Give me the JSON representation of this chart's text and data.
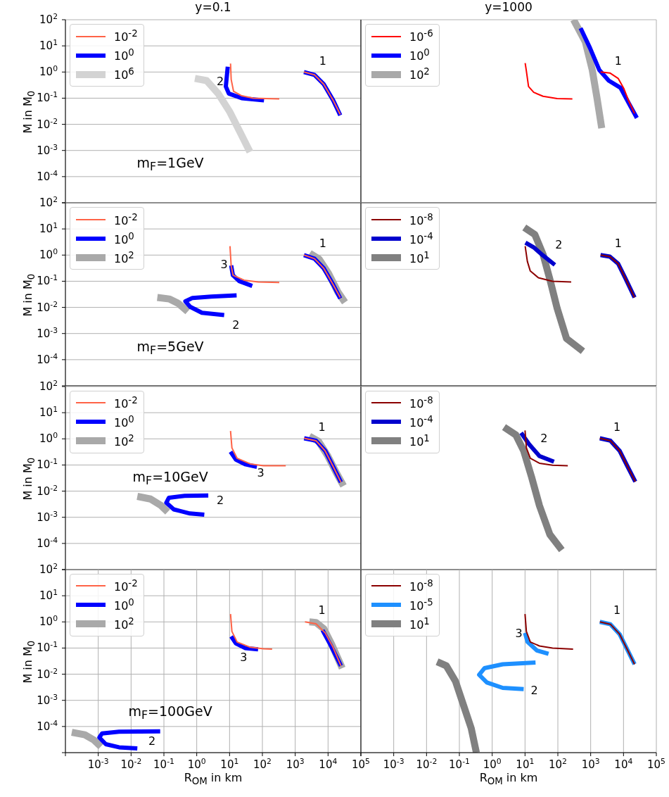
{
  "chart_data": [
    {
      "type": "line",
      "title": "y=0.1",
      "ylabel": "M in M$_{0}$",
      "log": "xy",
      "grid": true,
      "legend": "top left",
      "tick_labels": "y",
      "xlim": [
        0.0001,
        100000
      ],
      "ylim": [
        1e-05,
        100
      ],
      "xticks": [
        {
          "value": 0.0001,
          "label": null
        },
        {
          "value": 0.001,
          "label": null
        },
        {
          "value": 0.01,
          "label": null
        },
        {
          "value": 0.1,
          "label": null
        },
        {
          "value": 1,
          "label": null
        },
        {
          "value": 10,
          "label": null
        },
        {
          "value": 100,
          "label": null
        },
        {
          "value": 1000,
          "label": null
        },
        {
          "value": 10000,
          "label": null
        },
        {
          "value": 100000,
          "label": null
        }
      ],
      "yticks": [
        {
          "value": 1e-05,
          "label": null
        },
        {
          "value": 0.0001,
          "label": "10$^{-4}$"
        },
        {
          "value": 0.001,
          "label": "10$^{-3}$"
        },
        {
          "value": 0.01,
          "label": "10$^{-2}$"
        },
        {
          "value": 0.1,
          "label": "10$^{-1}$"
        },
        {
          "value": 1,
          "label": "10$^{0}$"
        },
        {
          "value": 10,
          "label": "10$^{1}$"
        },
        {
          "value": 100,
          "label": "10$^{2}$"
        }
      ],
      "series": [
        {
          "name": "10$^{-2}$",
          "color": "#ff6347",
          "x": [
            10.7,
            11.2,
            13.2,
            23.5,
            53,
            327,
            null,
            1840,
            3850,
            7430,
            14400,
            23500
          ],
          "values": [
            2.1,
            0.52,
            0.185,
            0.123,
            0.1,
            0.094,
            null,
            1,
            0.78,
            0.34,
            0.082,
            0.024
          ]
        },
        {
          "name": "10$^{0}$",
          "color": "#0000ff",
          "x": [
            8.8,
            7.7,
            9.5,
            23.5,
            112,
            null,
            1840,
            3850,
            7430,
            14400,
            23500
          ],
          "values": [
            1.6,
            0.28,
            0.15,
            0.1,
            0.082,
            null,
            1,
            0.78,
            0.34,
            0.082,
            0.022
          ]
        },
        {
          "name": "10$^{6}$",
          "color": "#d3d3d3",
          "x": [
            0.88,
            2,
            4.5,
            10.3,
            20,
            41.8
          ],
          "values": [
            0.57,
            0.47,
            0.15,
            0.029,
            0.0056,
            0.00088
          ]
        }
      ],
      "annotations": [
        "2",
        "1",
        "m$_{F}$=1GeV"
      ]
    },
    {
      "type": "line",
      "title": "y=1000",
      "log": "xy",
      "grid": true,
      "legend": "top left",
      "tick_labels": false,
      "xlim": [
        0.0001,
        100000
      ],
      "ylim": [
        1e-05,
        100
      ],
      "xticks": [
        {
          "value": 0.0001,
          "label": null
        },
        {
          "value": 0.001,
          "label": null
        },
        {
          "value": 0.01,
          "label": null
        },
        {
          "value": 0.1,
          "label": null
        },
        {
          "value": 1,
          "label": null
        },
        {
          "value": 10,
          "label": null
        },
        {
          "value": 100,
          "label": null
        },
        {
          "value": 1000,
          "label": null
        },
        {
          "value": 10000,
          "label": null
        },
        {
          "value": 100000,
          "label": null
        }
      ],
      "yticks": [
        {
          "value": 1e-05,
          "label": null
        },
        {
          "value": 0.0001,
          "label": null
        },
        {
          "value": 0.001,
          "label": null
        },
        {
          "value": 0.01,
          "label": null
        },
        {
          "value": 0.1,
          "label": null
        },
        {
          "value": 1,
          "label": null
        },
        {
          "value": 10,
          "label": null
        },
        {
          "value": 100,
          "label": null
        }
      ],
      "series": [
        {
          "name": "10$^{-6}$",
          "color": "#ff0000",
          "x": [
            10.1,
            10.9,
            12.8,
            18.4,
            35.5,
            95,
            277,
            null,
            2000,
            3850,
            6860,
            10300,
            14300,
            21700
          ],
          "values": [
            2.2,
            1.18,
            0.28,
            0.167,
            0.118,
            0.096,
            0.094,
            null,
            1,
            0.92,
            0.57,
            0.23,
            0.08,
            0.026
          ]
        },
        {
          "name": "10$^{0}$",
          "color": "#0000ff",
          "x": [
            493,
            952,
            1840,
            3550,
            8070,
            14300,
            25500
          ],
          "values": [
            47.6,
            8.3,
            1.18,
            0.47,
            0.25,
            0.066,
            0.0175
          ]
        },
        {
          "name": "10$^{2}$",
          "color": "#a9a9a9",
          "x": [
            301,
            686,
            1120,
            1560,
            2170
          ],
          "values": [
            100,
            14.3,
            1.18,
            0.1,
            0.0071
          ]
        }
      ],
      "annotations": [
        "1"
      ]
    },
    {
      "type": "line",
      "ylabel": "M in M$_{0}$",
      "log": "xy",
      "grid": true,
      "legend": "top left",
      "tick_labels": "y",
      "xlim": [
        0.0001,
        100000
      ],
      "ylim": [
        1e-05,
        100
      ],
      "xticks": [
        {
          "value": 0.0001,
          "label": null
        },
        {
          "value": 0.001,
          "label": null
        },
        {
          "value": 0.01,
          "label": null
        },
        {
          "value": 0.1,
          "label": null
        },
        {
          "value": 1,
          "label": null
        },
        {
          "value": 10,
          "label": null
        },
        {
          "value": 100,
          "label": null
        },
        {
          "value": 1000,
          "label": null
        },
        {
          "value": 10000,
          "label": null
        },
        {
          "value": 100000,
          "label": null
        }
      ],
      "yticks": [
        {
          "value": 1e-05,
          "label": null
        },
        {
          "value": 0.0001,
          "label": "10$^{-4}$"
        },
        {
          "value": 0.001,
          "label": "10$^{-3}$"
        },
        {
          "value": 0.01,
          "label": "10$^{-2}$"
        },
        {
          "value": 0.1,
          "label": "10$^{-1}$"
        },
        {
          "value": 1,
          "label": "10$^{0}$"
        },
        {
          "value": 10,
          "label": "10$^{1}$"
        },
        {
          "value": 100,
          "label": "10$^{2}$"
        }
      ],
      "series": [
        {
          "name": "10$^{-2}$",
          "color": "#ff6347",
          "x": [
            10.3,
            11.2,
            12.8,
            27.7,
            74,
            327,
            null,
            1840,
            3850,
            7430,
            14400,
            23500
          ],
          "values": [
            2.2,
            0.38,
            0.17,
            0.11,
            0.094,
            0.09,
            null,
            1,
            0.73,
            0.31,
            0.073,
            0.024
          ]
        },
        {
          "name": "10$^{0}$",
          "color": "#0000ff",
          "x": [
            11.2,
            12.6,
            20,
            49,
            null,
            16.4,
            2.77,
            0.74,
            0.45,
            0.63,
            1.44,
            6.85,
            null,
            1840,
            3850,
            7430,
            14400,
            23500
          ],
          "values": [
            0.4,
            0.17,
            0.1,
            0.066,
            null,
            0.029,
            0.026,
            0.023,
            0.017,
            0.0105,
            0.0062,
            0.0051,
            null,
            1,
            0.73,
            0.31,
            0.073,
            0.022
          ]
        },
        {
          "name": "10$^{2}$",
          "color": "#a9a9a9",
          "x": [
            0.063,
            0.145,
            0.28,
            0.53,
            null,
            2770,
            5350,
            10300,
            19900,
            32700
          ],
          "values": [
            0.024,
            0.021,
            0.014,
            0.0069,
            null,
            1.18,
            0.7,
            0.2,
            0.039,
            0.0156
          ]
        }
      ],
      "annotations": [
        "1",
        "3",
        "2",
        "m$_{F}$=5GeV"
      ]
    },
    {
      "type": "line",
      "log": "xy",
      "grid": true,
      "legend": "top left",
      "tick_labels": false,
      "xlim": [
        0.0001,
        100000
      ],
      "ylim": [
        1e-05,
        100
      ],
      "xticks": [
        {
          "value": 0.0001,
          "label": null
        },
        {
          "value": 0.001,
          "label": null
        },
        {
          "value": 0.01,
          "label": null
        },
        {
          "value": 0.1,
          "label": null
        },
        {
          "value": 1,
          "label": null
        },
        {
          "value": 10,
          "label": null
        },
        {
          "value": 100,
          "label": null
        },
        {
          "value": 1000,
          "label": null
        },
        {
          "value": 10000,
          "label": null
        },
        {
          "value": 100000,
          "label": null
        }
      ],
      "yticks": [
        {
          "value": 1e-05,
          "label": null
        },
        {
          "value": 0.0001,
          "label": null
        },
        {
          "value": 0.001,
          "label": null
        },
        {
          "value": 0.01,
          "label": null
        },
        {
          "value": 0.1,
          "label": null
        },
        {
          "value": 1,
          "label": null
        },
        {
          "value": 10,
          "label": null
        },
        {
          "value": 100,
          "label": null
        }
      ],
      "series": [
        {
          "name": "10$^{-8}$",
          "color": "#8b0000",
          "x": [
            10.1,
            11.8,
            14.4,
            25.5,
            68,
            255,
            null,
            2000,
            3850,
            6860,
            11200,
            21700
          ],
          "values": [
            2.2,
            0.57,
            0.25,
            0.136,
            0.1,
            0.094,
            null,
            1,
            0.87,
            0.47,
            0.136,
            0.024
          ]
        },
        {
          "name": "10$^{-4}$",
          "color": "#0000cd",
          "x": [
            10.3,
            18.4,
            35.5,
            81,
            null,
            2000,
            3850,
            6860,
            11200,
            21700
          ],
          "values": [
            3.0,
            1.97,
            0.96,
            0.42,
            null,
            1,
            0.87,
            0.47,
            0.136,
            0.024
          ]
        },
        {
          "name": "10$^{1}$",
          "color": "#808080",
          "x": [
            9.5,
            19.9,
            35.5,
            58,
            95,
            184,
            581
          ],
          "values": [
            11.4,
            6.1,
            1.06,
            0.11,
            0.0093,
            0.00064,
            0.00021
          ]
        }
      ],
      "annotations": [
        "2",
        "1"
      ]
    },
    {
      "type": "line",
      "ylabel": "M in M$_{0}$",
      "log": "xy",
      "grid": true,
      "legend": "top left",
      "tick_labels": "y",
      "xlim": [
        0.0001,
        100000
      ],
      "ylim": [
        1e-05,
        100
      ],
      "xticks": [
        {
          "value": 0.0001,
          "label": null
        },
        {
          "value": 0.001,
          "label": null
        },
        {
          "value": 0.01,
          "label": null
        },
        {
          "value": 0.1,
          "label": null
        },
        {
          "value": 1,
          "label": null
        },
        {
          "value": 10,
          "label": null
        },
        {
          "value": 100,
          "label": null
        },
        {
          "value": 1000,
          "label": null
        },
        {
          "value": 10000,
          "label": null
        },
        {
          "value": 100000,
          "label": null
        }
      ],
      "yticks": [
        {
          "value": 1e-05,
          "label": null
        },
        {
          "value": 0.0001,
          "label": "10$^{-4}$"
        },
        {
          "value": 0.001,
          "label": "10$^{-3}$"
        },
        {
          "value": 0.01,
          "label": "10$^{-2}$"
        },
        {
          "value": 0.1,
          "label": "10$^{-1}$"
        },
        {
          "value": 1,
          "label": "10$^{0}$"
        },
        {
          "value": 10,
          "label": "10$^{1}$"
        },
        {
          "value": 100,
          "label": "10$^{2}$"
        }
      ],
      "series": [
        {
          "name": "10$^{-2}$",
          "color": "#ff6347",
          "x": [
            10.7,
            11.8,
            17,
            43,
            108,
            515,
            null,
            1870,
            4290,
            8170,
            14200,
            24700
          ],
          "values": [
            2.0,
            0.45,
            0.18,
            0.11,
            0.094,
            0.094,
            null,
            1.05,
            0.85,
            0.35,
            0.089,
            0.022
          ]
        },
        {
          "name": "10$^{0}$",
          "color": "#0000ff",
          "x": [
            10.7,
            15.6,
            29.6,
            68,
            null,
            2.25,
            0.43,
            0.142,
            0.118,
            0.2,
            0.62,
            1.7,
            null,
            1870,
            4290,
            8170,
            14200,
            24700
          ],
          "values": [
            0.32,
            0.16,
            0.107,
            0.085,
            null,
            0.0068,
            0.0066,
            0.0056,
            0.0036,
            0.002,
            0.0014,
            0.00126,
            null,
            1.05,
            0.85,
            0.35,
            0.089,
            0.022
          ]
        },
        {
          "name": "10$^{2}$",
          "color": "#a9a9a9",
          "x": [
            0.0155,
            0.039,
            0.082,
            0.13,
            null,
            2700,
            5150,
            9820,
            17100,
            29600
          ],
          "values": [
            0.0063,
            0.005,
            0.0028,
            0.0016,
            null,
            1.26,
            0.8,
            0.22,
            0.056,
            0.0158
          ]
        }
      ],
      "annotations": [
        "1",
        "3",
        "2",
        "m$_{F}$=10GeV"
      ]
    },
    {
      "type": "line",
      "log": "xy",
      "grid": true,
      "legend": "top left",
      "tick_labels": false,
      "xlim": [
        0.0001,
        100000
      ],
      "ylim": [
        1e-05,
        100
      ],
      "xticks": [
        {
          "value": 0.0001,
          "label": null
        },
        {
          "value": 0.001,
          "label": null
        },
        {
          "value": 0.01,
          "label": null
        },
        {
          "value": 0.1,
          "label": null
        },
        {
          "value": 1,
          "label": null
        },
        {
          "value": 10,
          "label": null
        },
        {
          "value": 100,
          "label": null
        },
        {
          "value": 1000,
          "label": null
        },
        {
          "value": 10000,
          "label": null
        },
        {
          "value": 100000,
          "label": null
        }
      ],
      "yticks": [
        {
          "value": 1e-05,
          "label": null
        },
        {
          "value": 0.0001,
          "label": null
        },
        {
          "value": 0.001,
          "label": null
        },
        {
          "value": 0.01,
          "label": null
        },
        {
          "value": 0.1,
          "label": null
        },
        {
          "value": 1,
          "label": null
        },
        {
          "value": 10,
          "label": null
        },
        {
          "value": 100,
          "label": null
        }
      ],
      "series": [
        {
          "name": "10$^{-8}$",
          "color": "#8b0000",
          "x": [
            10,
            11,
            14.5,
            27.5,
            69,
            201,
            null,
            1900,
            3990,
            7590,
            13200,
            22900
          ],
          "values": [
            2.1,
            0.45,
            0.18,
            0.117,
            0.098,
            0.094,
            null,
            1.05,
            0.85,
            0.35,
            0.089,
            0.023
          ]
        },
        {
          "name": "10$^{-4}$",
          "color": "#0000cd",
          "x": [
            7.6,
            13.2,
            27.5,
            76,
            null,
            1900,
            3990,
            7590,
            13200,
            22900
          ],
          "values": [
            1.7,
            0.63,
            0.22,
            0.134,
            null,
            1.05,
            0.85,
            0.35,
            0.089,
            0.023
          ]
        },
        {
          "name": "10$^{1}$",
          "color": "#808080",
          "x": [
            2.29,
            5.25,
            9.1,
            15.8,
            27.5,
            57,
            132
          ],
          "values": [
            2.8,
            1.41,
            0.35,
            0.035,
            0.0028,
            0.00022,
            5.6e-05
          ]
        }
      ],
      "annotations": [
        "2",
        "1"
      ]
    },
    {
      "type": "line",
      "xlabel": "R$_{OM}$ in km",
      "ylabel": "M in M$_{0}$",
      "log": "xy",
      "grid": true,
      "legend": "top left",
      "xlim": [
        0.0001,
        100000
      ],
      "ylim": [
        1e-05,
        100
      ],
      "xticks": [
        {
          "value": 0.0001,
          "label": null
        },
        {
          "value": 0.001,
          "label": "10$^{-3}$"
        },
        {
          "value": 0.01,
          "label": "10$^{-2}$"
        },
        {
          "value": 0.1,
          "label": "10$^{-1}$"
        },
        {
          "value": 1,
          "label": "10$^{0}$"
        },
        {
          "value": 10,
          "label": "10$^{1}$"
        },
        {
          "value": 100,
          "label": "10$^{2}$"
        },
        {
          "value": 1000,
          "label": "10$^{3}$"
        },
        {
          "value": 10000,
          "label": "10$^{4}$"
        },
        {
          "value": 100000,
          "label": "10$^{5}$"
        }
      ],
      "yticks": [
        {
          "value": 1e-05,
          "label": null
        },
        {
          "value": 0.0001,
          "label": "10$^{-4}$"
        },
        {
          "value": 0.001,
          "label": "10$^{-3}$"
        },
        {
          "value": 0.01,
          "label": "10$^{-2}$"
        },
        {
          "value": 0.1,
          "label": "10$^{-1}$"
        },
        {
          "value": 1,
          "label": "10$^{0}$"
        },
        {
          "value": 10,
          "label": "10$^{1}$"
        },
        {
          "value": 100,
          "label": "10$^{2}$"
        }
      ],
      "series": [
        {
          "name": "10$^{-2}$",
          "color": "#ff6347",
          "x": [
            10.7,
            11.8,
            17,
            43,
            108,
            198,
            null,
            1980,
            4290,
            8170,
            14200,
            24700
          ],
          "values": [
            2.0,
            0.43,
            0.17,
            0.107,
            0.094,
            0.091,
            null,
            1.0,
            0.85,
            0.38,
            0.107,
            0.021
          ]
        },
        {
          "name": "10$^{0}$",
          "color": "#0000ff",
          "x": [
            11.2,
            15.6,
            29.6,
            74,
            null,
            0.077,
            0.0043,
            0.0013,
            0.00108,
            0.0017,
            0.0043,
            0.0155,
            null,
            6790,
            11800,
            24700
          ],
          "values": [
            0.28,
            0.15,
            0.1,
            0.089,
            null,
            6.5e-05,
            6.3e-05,
            5.4e-05,
            3.8e-05,
            2.1e-05,
            1.6e-05,
            1.45e-05,
            null,
            0.48,
            0.135,
            0.021
          ]
        },
        {
          "name": "10$^{2}$",
          "color": "#a9a9a9",
          "x": [
            0.000156,
            0.00039,
            0.00075,
            0.0012,
            null,
            2700,
            4290,
            7450,
            13000,
            27000
          ],
          "values": [
            6e-05,
            4.8e-05,
            3e-05,
            1.7e-05,
            null,
            1.0,
            0.95,
            0.54,
            0.135,
            0.017
          ]
        }
      ],
      "annotations": [
        "1",
        "3",
        "2",
        "m$_{F}$=100GeV"
      ]
    },
    {
      "type": "line",
      "xlabel": "R$_{OM}$ in km",
      "log": "xy",
      "grid": true,
      "legend": "top left",
      "tick_labels": "x",
      "xlim": [
        0.0001,
        100000
      ],
      "ylim": [
        1e-05,
        100
      ],
      "xticks": [
        {
          "value": 0.0001,
          "label": null
        },
        {
          "value": 0.001,
          "label": "10$^{-3}$"
        },
        {
          "value": 0.01,
          "label": "10$^{-2}$"
        },
        {
          "value": 0.1,
          "label": "10$^{-1}$"
        },
        {
          "value": 1,
          "label": "10$^{0}$"
        },
        {
          "value": 10,
          "label": "10$^{1}$"
        },
        {
          "value": 100,
          "label": "10$^{2}$"
        },
        {
          "value": 1000,
          "label": "10$^{3}$"
        },
        {
          "value": 10000,
          "label": "10$^{4}$"
        },
        {
          "value": 100000,
          "label": "10$^{5}$"
        }
      ],
      "yticks": [
        {
          "value": 1e-05,
          "label": null
        },
        {
          "value": 0.0001,
          "label": null
        },
        {
          "value": 0.001,
          "label": null
        },
        {
          "value": 0.01,
          "label": null
        },
        {
          "value": 0.1,
          "label": null
        },
        {
          "value": 1,
          "label": null
        },
        {
          "value": 10,
          "label": null
        },
        {
          "value": 100,
          "label": null
        }
      ],
      "series": [
        {
          "name": "10$^{-8}$",
          "color": "#8b0000",
          "x": [
            10,
            11,
            14.5,
            27.5,
            69,
            291,
            null,
            1900,
            3990,
            7590,
            13200,
            21700
          ],
          "values": [
            2.0,
            0.43,
            0.17,
            0.12,
            0.1,
            0.091,
            null,
            1.0,
            0.81,
            0.34,
            0.085,
            0.024
          ]
        },
        {
          "name": "10$^{-5}$",
          "color": "#1e90ff",
          "x": [
            10,
            12,
            22.9,
            52,
            null,
            20.9,
            2.09,
            0.58,
            0.4,
            0.69,
            2.09,
            9.1,
            null,
            1900,
            3990,
            7590,
            13200,
            21700
          ],
          "values": [
            0.38,
            0.17,
            0.081,
            0.06,
            null,
            0.028,
            0.024,
            0.017,
            0.0095,
            0.0048,
            0.003,
            0.0027,
            null,
            1.0,
            0.81,
            0.34,
            0.085,
            0.024
          ]
        },
        {
          "name": "10$^{1}$",
          "color": "#808080",
          "x": [
            0.021,
            0.04,
            0.076,
            0.132,
            0.23,
            0.33
          ],
          "values": [
            0.03,
            0.021,
            0.0054,
            0.00068,
            8.5e-05,
            1e-05
          ]
        }
      ],
      "annotations": [
        "1",
        "3",
        "2"
      ]
    }
  ]
}
